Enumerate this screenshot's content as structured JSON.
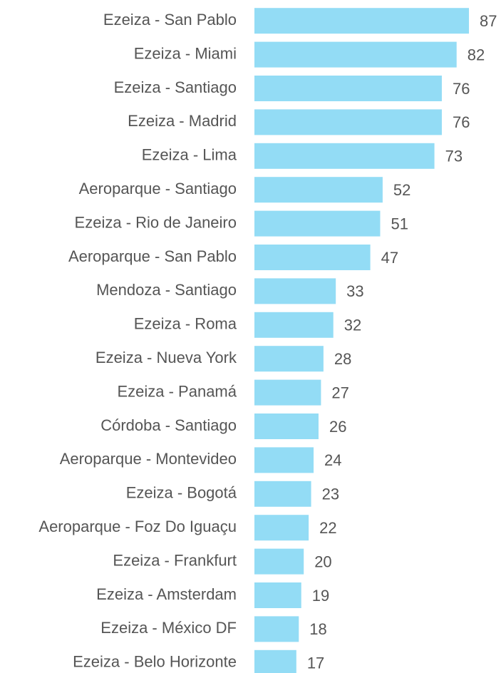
{
  "chart_data": {
    "type": "bar",
    "orientation": "horizontal",
    "categories": [
      "Ezeiza - San Pablo",
      "Ezeiza - Miami",
      "Ezeiza - Santiago",
      "Ezeiza - Madrid",
      "Ezeiza - Lima",
      "Aeroparque - Santiago",
      "Ezeiza - Rio de Janeiro",
      "Aeroparque - San Pablo",
      "Mendoza - Santiago",
      "Ezeiza - Roma",
      "Ezeiza - Nueva York",
      "Ezeiza - Panamá",
      "Córdoba - Santiago",
      "Aeroparque - Montevideo",
      "Ezeiza - Bogotá",
      "Aeroparque - Foz Do Iguaçu",
      "Ezeiza - Frankfurt",
      "Ezeiza - Amsterdam",
      "Ezeiza - México DF",
      "Ezeiza - Belo Horizonte"
    ],
    "values": [
      87,
      82,
      76,
      76,
      73,
      52,
      51,
      47,
      33,
      32,
      28,
      27,
      26,
      24,
      23,
      22,
      20,
      19,
      18,
      17
    ],
    "color": "#93dcf5",
    "xlim": [
      0,
      100
    ]
  }
}
